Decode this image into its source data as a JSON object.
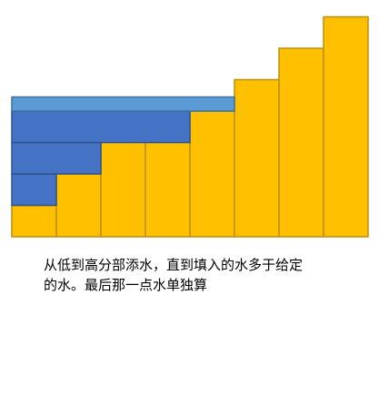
{
  "chart_data": {
    "type": "bar",
    "columns": [
      {
        "height": 1,
        "water": 0
      },
      {
        "height": 2,
        "water": 0
      },
      {
        "height": 3,
        "water": 0
      },
      {
        "height": 3,
        "water": 0
      },
      {
        "height": 4,
        "water": 0
      },
      {
        "height": 5,
        "water": 0
      },
      {
        "height": 6,
        "water": 0
      },
      {
        "height": 7,
        "water": 0
      }
    ],
    "water_levels": [
      {
        "span": 1,
        "from": 1,
        "to": 2
      },
      {
        "span": 2,
        "from": 2,
        "to": 3
      },
      {
        "span": 4,
        "from": 3,
        "to": 4
      },
      {
        "span": 5,
        "from": 4,
        "to": 4.45
      }
    ],
    "colors": {
      "column_fill": "#FFC000",
      "column_stroke": "#B8900C",
      "water_fill": "#4472C4",
      "water_stroke": "#2F528F",
      "final_water_fill": "#5B9BD5",
      "final_water_stroke": "#41719C"
    }
  },
  "caption": {
    "line1": "从低到高分部添水，直到填入的水多于给定",
    "line2": "的水。最后那一点水单独算"
  }
}
